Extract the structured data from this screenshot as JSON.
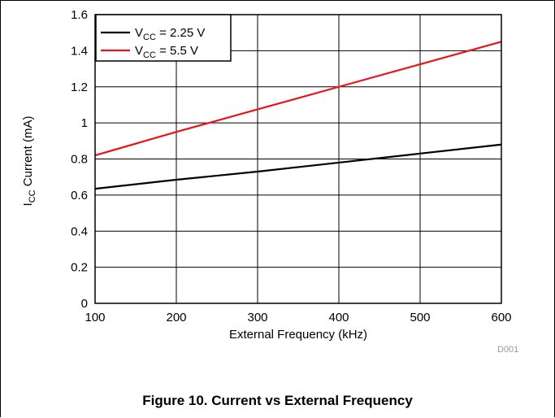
{
  "chart_data": {
    "type": "line",
    "xlabel": "External Frequency (kHz)",
    "ylabel_main": "I",
    "ylabel_sub": "CC",
    "ylabel_rest": " Current (mA)",
    "xlim": [
      100,
      600
    ],
    "ylim": [
      0,
      1.6
    ],
    "x_ticks": [
      "100",
      "200",
      "300",
      "400",
      "500",
      "600"
    ],
    "y_ticks": [
      "0",
      "0.2",
      "0.4",
      "0.6",
      "0.8",
      "1",
      "1.2",
      "1.4",
      "1.6"
    ],
    "grid": true,
    "legend_position": "top-left",
    "series": [
      {
        "name_main": "V",
        "name_sub": "CC",
        "name_rest": " = 2.25 V",
        "color": "#000000",
        "x": [
          100,
          200,
          300,
          400,
          500,
          600
        ],
        "y": [
          0.635,
          0.685,
          0.73,
          0.78,
          0.83,
          0.88
        ]
      },
      {
        "name_main": "V",
        "name_sub": "CC",
        "name_rest": " = 5.5 V",
        "color": "#e8141c",
        "x": [
          100,
          200,
          300,
          400,
          500,
          600
        ],
        "y": [
          0.82,
          0.95,
          1.075,
          1.2,
          1.325,
          1.45
        ]
      }
    ]
  },
  "figure_code": "D001",
  "caption": "Figure 10. Current vs External Frequency"
}
